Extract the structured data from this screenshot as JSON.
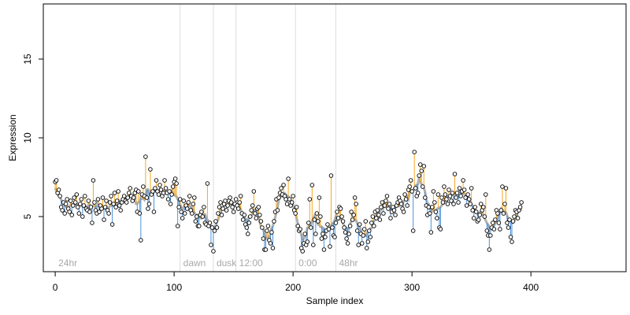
{
  "chart_data": {
    "type": "scatter",
    "title": "",
    "xlabel": "Sample index",
    "ylabel": "Expression",
    "xlim": [
      -10,
      480
    ],
    "ylim": [
      1.5,
      18.5
    ],
    "x_ticks": [
      0,
      100,
      200,
      300,
      400
    ],
    "y_ticks": [
      5,
      10,
      15
    ],
    "grid": "vertical lines at segment boundaries",
    "colors": {
      "trend": "#b0b0b0",
      "above_trend": "#f5a623",
      "below_trend": "#4a90d9",
      "points": "#000000",
      "segment_lines": "#dddddd",
      "segment_labels": "#a8a8a8"
    },
    "segments": [
      {
        "label": "24hr",
        "x": 0
      },
      {
        "label": "dawn",
        "x": 105
      },
      {
        "label": "dusk",
        "x": 133
      },
      {
        "label": "12:00",
        "x": 152
      },
      {
        "label": "0:00",
        "x": 202
      },
      {
        "label": "48hr",
        "x": 236
      }
    ],
    "series": [
      {
        "values": [
          7.2,
          7.3,
          6.5,
          6.7,
          6.3,
          5.6,
          5.4,
          5.9,
          5.2,
          5.8,
          6.1,
          5.5,
          5.3,
          6.0,
          5.1,
          5.7,
          6.2,
          5.9,
          6.4,
          5.6,
          5.2,
          5.8,
          6.1,
          5.0,
          5.7,
          6.3,
          5.5,
          5.4,
          6.0,
          5.3,
          5.6,
          4.6,
          7.3,
          5.9,
          5.4,
          5.2,
          6.1,
          5.3,
          5.7,
          5.5,
          6.2,
          4.8,
          5.6,
          6.0,
          5.4,
          5.2,
          5.9,
          6.3,
          4.5,
          5.8,
          6.5,
          5.6,
          6.0,
          6.6,
          5.7,
          5.4,
          5.9,
          6.1,
          6.3,
          6.0,
          5.9,
          6.2,
          6.5,
          6.8,
          6.3,
          6.0,
          6.2,
          6.5,
          6.7,
          5.3,
          6.6,
          5.2,
          3.5,
          6.4,
          6.9,
          6.3,
          8.8,
          6.2,
          5.5,
          5.8,
          8.0,
          6.4,
          6.6,
          5.3,
          6.8,
          7.3,
          6.6,
          6.4,
          7.0,
          6.7,
          6.3,
          6.5,
          7.3,
          6.8,
          6.5,
          6.1,
          6.6,
          5.8,
          6.4,
          6.9,
          7.2,
          7.4,
          7.1,
          4.4,
          5.6,
          6.1,
          5.3,
          4.9,
          6.0,
          5.2,
          5.7,
          5.5,
          5.9,
          6.3,
          5.4,
          5.2,
          5.8,
          6.2,
          4.7,
          5.0,
          4.4,
          4.4,
          5.1,
          5.3,
          5.0,
          5.6,
          4.6,
          4.5,
          7.1,
          4.4,
          4.6,
          3.2,
          4.3,
          2.8,
          4.1,
          4.7,
          4.3,
          5.2,
          5.6,
          5.9,
          5.1,
          5.5,
          5.8,
          6.0,
          5.4,
          5.7,
          6.0,
          6.2,
          5.9,
          5.6,
          5.3,
          5.8,
          6.1,
          5.7,
          5.5,
          5.9,
          6.3,
          5.2,
          4.8,
          5.1,
          4.5,
          4.3,
          3.9,
          4.6,
          5.0,
          5.4,
          5.7,
          6.6,
          5.2,
          4.9,
          5.5,
          5.6,
          5.1,
          4.7,
          4.3,
          3.6,
          2.9,
          2.9,
          4.1,
          4.4,
          3.5,
          3.3,
          4.0,
          3.0,
          4.7,
          5.3,
          6.1,
          5.4,
          6.2,
          6.5,
          6.8,
          6.4,
          7.0,
          6.3,
          6.1,
          5.8,
          7.4,
          6.1,
          5.7,
          5.9,
          6.3,
          5.4,
          5.2,
          5.6,
          4.4,
          4.1,
          4.2,
          3.0,
          2.8,
          3.3,
          3.9,
          3.2,
          3.4,
          4.6,
          6.1,
          4.3,
          7.0,
          3.2,
          4.8,
          3.9,
          5.2,
          4.7,
          6.2,
          5.0,
          3.6,
          3.9,
          2.9,
          3.7,
          4.1,
          4.5,
          4.2,
          3.1,
          7.6,
          4.3,
          3.8,
          3.7,
          4.6,
          5.3,
          4.9,
          5.6,
          5.5,
          5.0,
          4.7,
          4.3,
          4.0,
          3.6,
          3.3,
          3.9,
          4.4,
          5.3,
          4.8,
          5.1,
          6.2,
          5.8,
          4.1,
          3.2,
          4.5,
          3.9,
          3.3,
          3.8,
          4.2,
          4.7,
          3.0,
          3.4,
          4.1,
          3.7,
          4.6,
          5.0,
          4.4,
          5.3,
          4.9,
          5.4,
          5.1,
          4.8,
          5.6,
          5.9,
          5.2,
          5.7,
          6.0,
          6.3,
          5.5,
          5.8,
          4.9,
          5.3,
          5.6,
          5.4,
          5.1,
          5.7,
          5.9,
          6.2,
          6.0,
          5.8,
          5.5,
          5.3,
          6.4,
          6.1,
          5.7,
          6.7,
          6.9,
          7.3,
          6.6,
          4.1,
          9.1,
          6.8,
          6.3,
          6.5,
          7.6,
          8.3,
          7.9,
          6.9,
          8.2,
          6.2,
          5.7,
          5.1,
          5.6,
          5.2,
          4.0,
          5.6,
          6.6,
          5.9,
          5.3,
          4.9,
          6.4,
          4.3,
          4.2,
          6.2,
          5.9,
          6.9,
          6.4,
          6.1,
          5.8,
          6.7,
          6.3,
          6.0,
          6.5,
          5.8,
          7.7,
          6.2,
          6.5,
          5.9,
          6.8,
          6.3,
          6.6,
          7.3,
          6.7,
          6.2,
          5.7,
          6.4,
          6.1,
          5.8,
          6.8,
          5.4,
          4.9,
          5.6,
          5.3,
          4.7,
          4.8,
          5.1,
          5.8,
          5.4,
          5.6,
          5.0,
          6.4,
          4.1,
          3.8,
          2.9,
          3.8,
          4.3,
          4.6,
          4.2,
          4.8,
          5.4,
          5.2,
          4.6,
          4.2,
          5.4,
          6.9,
          5.2,
          5.8,
          6.8,
          4.6,
          4.3,
          4.8,
          3.7,
          3.4,
          4.7,
          5.0,
          5.4,
          5.3,
          4.9,
          5.4,
          5.6,
          5.9
        ]
      }
    ]
  }
}
